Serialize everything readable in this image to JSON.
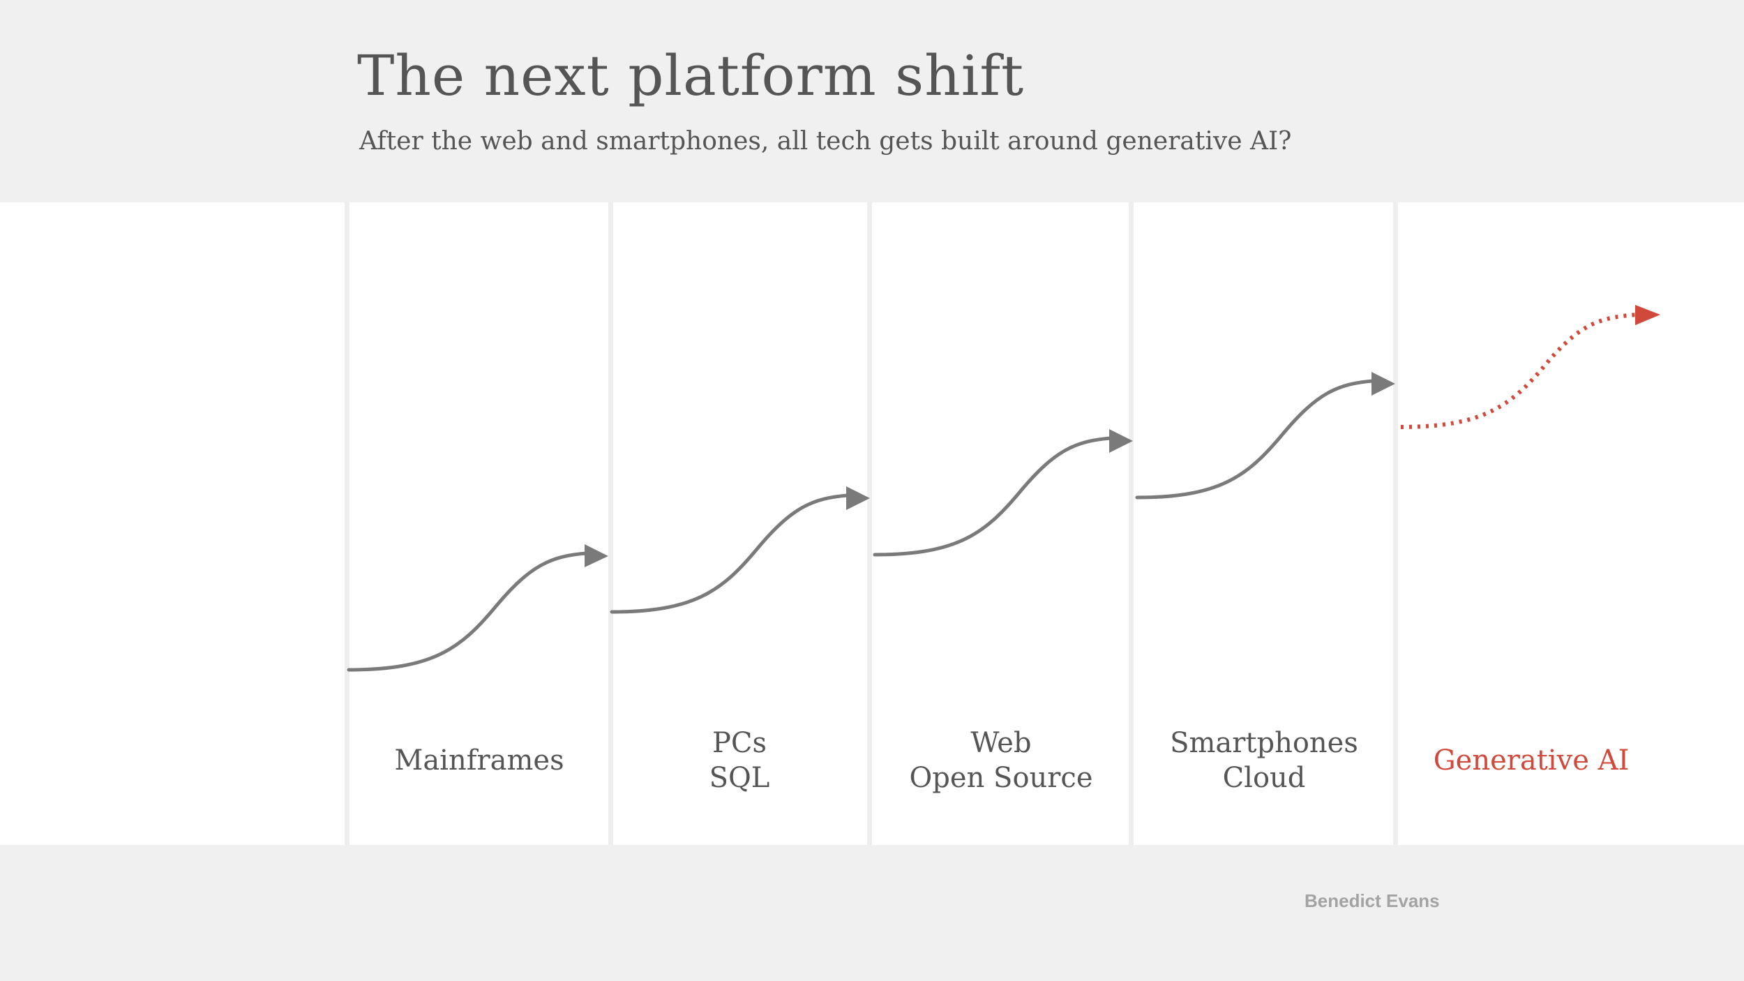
{
  "header": {
    "title": "The next platform shift",
    "subtitle": "After the web and smartphones, all tech gets built around generative AI?"
  },
  "stages": [
    {
      "lines": [
        "Mainframes"
      ],
      "highlight": false,
      "line_style": "solid"
    },
    {
      "lines": [
        "PCs",
        "SQL"
      ],
      "highlight": false,
      "line_style": "solid"
    },
    {
      "lines": [
        "Web",
        "Open Source"
      ],
      "highlight": false,
      "line_style": "solid"
    },
    {
      "lines": [
        "Smartphones",
        "Cloud"
      ],
      "highlight": false,
      "line_style": "solid"
    },
    {
      "lines": [
        "Generative AI"
      ],
      "highlight": true,
      "line_style": "dotted"
    }
  ],
  "footer": {
    "credit": "Benedict Evans"
  },
  "colors": {
    "background": "#f0f0f0",
    "panel": "#ffffff",
    "text": "#555555",
    "curve": "#7a7a7a",
    "accent": "#d1493b",
    "credit": "#a3a3a3"
  }
}
